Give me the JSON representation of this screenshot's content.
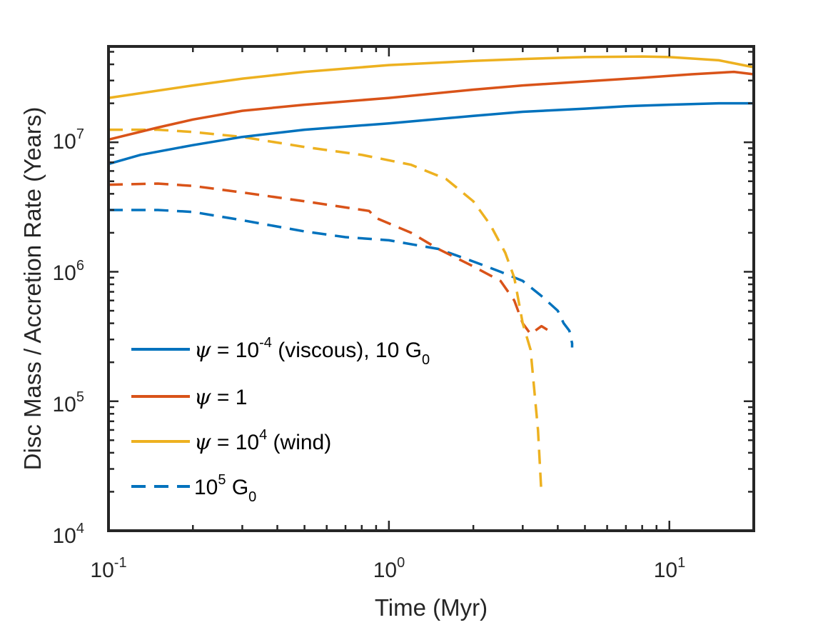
{
  "chart_data": {
    "type": "line",
    "title": "",
    "xlabel": "Time (Myr)",
    "ylabel": "Disc Mass / Accretion Rate (Years)",
    "xscale": "log",
    "yscale": "log",
    "xlim": [
      0.1,
      20
    ],
    "ylim": [
      10000,
      55000000
    ],
    "x_ticks": [
      {
        "value": 0.1,
        "base": "10",
        "exp": "-1"
      },
      {
        "value": 1,
        "base": "10",
        "exp": "0"
      },
      {
        "value": 10,
        "base": "10",
        "exp": "1"
      }
    ],
    "y_ticks": [
      {
        "value": 10000,
        "base": "10",
        "exp": "4"
      },
      {
        "value": 100000,
        "base": "10",
        "exp": "5"
      },
      {
        "value": 1000000,
        "base": "10",
        "exp": "6"
      },
      {
        "value": 10000000,
        "base": "10",
        "exp": "7"
      }
    ],
    "grid": false,
    "legend_position": "bottom-left",
    "legend": [
      {
        "style": "solid",
        "color": "#0072BD",
        "symbol": "ψ",
        "text": " = 10",
        "sup": "-4",
        "text2": " (viscous), 10 G",
        "sub": "0"
      },
      {
        "style": "solid",
        "color": "#D95319",
        "symbol": "ψ",
        "text": " = 1",
        "sup": "",
        "text2": "",
        "sub": ""
      },
      {
        "style": "solid",
        "color": "#EDB120",
        "symbol": "ψ",
        "text": " = 10",
        "sup": "4",
        "text2": " (wind)",
        "sub": ""
      },
      {
        "style": "dashed",
        "color": "#0072BD",
        "symbol": "",
        "text": "10",
        "sup": "5",
        "text2": " G",
        "sub": "0"
      }
    ],
    "series": [
      {
        "name": "ψ = 1e-4, 10 G0",
        "color": "#0072BD",
        "style": "solid",
        "x": [
          0.1,
          0.13,
          0.2,
          0.3,
          0.5,
          1,
          2,
          3,
          5,
          7,
          10,
          15,
          20
        ],
        "y": [
          6800000,
          8000000,
          9500000,
          11000000,
          12500000,
          14000000,
          16000000,
          17200000,
          18200000,
          19000000,
          19500000,
          20000000,
          20000000
        ]
      },
      {
        "name": "ψ = 1, 10 G0",
        "color": "#D95319",
        "style": "solid",
        "x": [
          0.1,
          0.15,
          0.2,
          0.3,
          0.5,
          1,
          2,
          3,
          5,
          8,
          12,
          17,
          20
        ],
        "y": [
          10500000,
          13000000,
          15000000,
          17500000,
          19500000,
          22000000,
          25500000,
          27500000,
          29500000,
          31500000,
          33500000,
          35000000,
          33500000
        ]
      },
      {
        "name": "ψ = 1e4, 10 G0",
        "color": "#EDB120",
        "style": "solid",
        "x": [
          0.1,
          0.2,
          0.3,
          0.5,
          1,
          2,
          3,
          5,
          8,
          10,
          15,
          20
        ],
        "y": [
          22000000,
          27500000,
          31000000,
          35000000,
          39500000,
          42500000,
          44000000,
          45500000,
          46000000,
          45500000,
          43000000,
          38000000
        ]
      },
      {
        "name": "ψ = 1e-4, 1e5 G0",
        "color": "#0072BD",
        "style": "dashed",
        "x": [
          0.1,
          0.15,
          0.2,
          0.3,
          0.5,
          0.7,
          1,
          1.5,
          2,
          2.5,
          3,
          3.5,
          4,
          4.2,
          4.4,
          4.5,
          4.5
        ],
        "y": [
          3000000,
          3000000,
          2900000,
          2500000,
          2050000,
          1850000,
          1750000,
          1500000,
          1200000,
          1000000,
          850000,
          650000,
          500000,
          400000,
          350000,
          280000,
          260000
        ]
      },
      {
        "name": "ψ = 1, 1e5 G0",
        "color": "#D95319",
        "style": "dashed",
        "x": [
          0.1,
          0.15,
          0.2,
          0.3,
          0.5,
          0.85,
          0.9,
          1.2,
          1.5,
          2,
          2.5,
          2.8,
          3,
          3.2,
          3.5,
          3.8
        ],
        "y": [
          4700000,
          4800000,
          4600000,
          4100000,
          3500000,
          2950000,
          2600000,
          2000000,
          1500000,
          1100000,
          850000,
          600000,
          400000,
          330000,
          380000,
          340000
        ]
      },
      {
        "name": "ψ = 1e4, 1e5 G0",
        "color": "#EDB120",
        "style": "dashed",
        "x": [
          0.1,
          0.15,
          0.2,
          0.3,
          0.5,
          0.8,
          1.2,
          1.6,
          2,
          2.3,
          2.6,
          2.8,
          3,
          3.2,
          3.4,
          3.5
        ],
        "y": [
          12500000,
          12500000,
          12000000,
          11000000,
          9200000,
          8000000,
          6700000,
          5200000,
          3500000,
          2300000,
          1400000,
          900000,
          400000,
          250000,
          60000,
          19000
        ]
      }
    ]
  }
}
